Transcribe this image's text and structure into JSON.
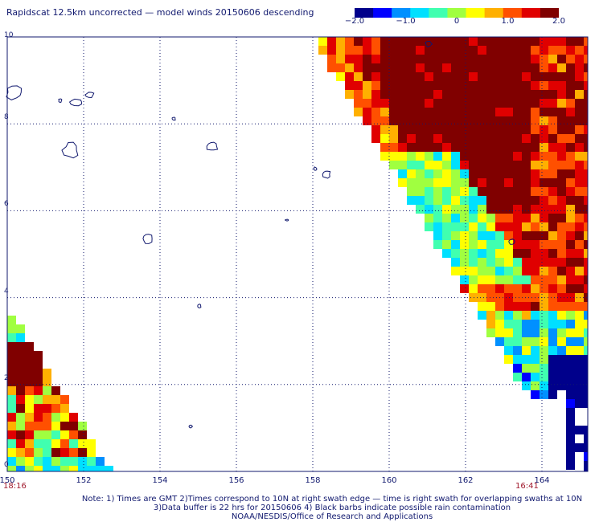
{
  "header": {
    "title": "Rapidscat 12.5km uncorrected — model winds 20150606 descending"
  },
  "colorbar": {
    "ticks": [
      "−2.0",
      "−1.0",
      "0",
      "1.0",
      "2.0"
    ],
    "range": [
      -2.0,
      2.0
    ],
    "colors": [
      "#00008b",
      "#0000ff",
      "#0090ff",
      "#00e0ff",
      "#40ffb0",
      "#a0ff40",
      "#ffff00",
      "#ffb000",
      "#ff5000",
      "#e00000",
      "#800000"
    ]
  },
  "map": {
    "lon_range": [
      150,
      165.2
    ],
    "lat_range": [
      0,
      10
    ],
    "x_ticks": [
      "150",
      "152",
      "154",
      "156",
      "158",
      "160",
      "162",
      "164"
    ],
    "y_ticks": [
      "0",
      "2",
      "4",
      "6",
      "8",
      "10"
    ],
    "coast_color": "#10186e",
    "grid": true
  },
  "swaths": {
    "left_time": "18:16",
    "right_time": "16:41"
  },
  "footer": {
    "note_line1": "Note: 1) Times are GMT 2)Times correspond to 10N at right swath edge — time is right swath for overlapping swaths at 10N",
    "note_line2": "3)Data buffer is 22 hrs for 20150606 4) Black barbs indicate possible rain contamination",
    "note_line3": "NOAA/NESDIS/Office of Research and Applications"
  }
}
